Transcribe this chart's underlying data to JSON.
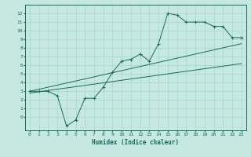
{
  "xlabel": "Humidex (Indice chaleur)",
  "xlim": [
    -0.5,
    23.5
  ],
  "ylim": [
    -1.5,
    13
  ],
  "xticks": [
    0,
    1,
    2,
    3,
    4,
    5,
    6,
    7,
    8,
    9,
    10,
    11,
    12,
    13,
    14,
    15,
    16,
    17,
    18,
    19,
    20,
    21,
    22,
    23
  ],
  "yticks": [
    0,
    1,
    2,
    3,
    4,
    5,
    6,
    7,
    8,
    9,
    10,
    11,
    12
  ],
  "bg_color": "#c5e8e0",
  "grid_color": "#a8d4cc",
  "line_color": "#1a6b5a",
  "line1_x": [
    0,
    1,
    2,
    3,
    4,
    5,
    6,
    7,
    8,
    9,
    10,
    11,
    12,
    13,
    14,
    15,
    16,
    17,
    18,
    19,
    20,
    21,
    22,
    23
  ],
  "line1_y": [
    3,
    3,
    3,
    2.5,
    -1,
    -0.3,
    2.2,
    2.2,
    3.5,
    5.2,
    6.5,
    6.7,
    7.3,
    6.5,
    8.5,
    12.0,
    11.8,
    11.0,
    11.0,
    11.0,
    10.5,
    10.5,
    9.2,
    9.2
  ],
  "line2_x": [
    0,
    23
  ],
  "line2_y": [
    3.0,
    8.5
  ],
  "line3_x": [
    0,
    23
  ],
  "line3_y": [
    2.8,
    6.2
  ],
  "marker": "+"
}
